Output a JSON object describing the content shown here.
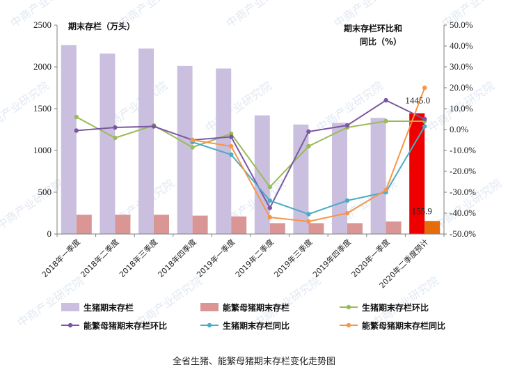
{
  "chart_data": {
    "type": "bar+line",
    "caption": "全省生猪、能繁母猪期末存栏变化走势图",
    "left_axis_title": "期末存栏（万头）",
    "right_axis_title_line1": "期末存栏环比和",
    "right_axis_title_line2": "同比（%）",
    "left_ylim": [
      0,
      2500
    ],
    "left_ticks": [
      "0",
      "500",
      "1000",
      "1500",
      "2000",
      "2500"
    ],
    "right_ylim": [
      -50,
      50
    ],
    "right_ticks": [
      "-50.0%",
      "-40.0%",
      "-30.0%",
      "-20.0%",
      "-10.0%",
      "0.0%",
      "10.0%",
      "20.0%",
      "30.0%",
      "40.0%",
      "50.0%"
    ],
    "categories": [
      "2018年一季度",
      "2018年二季度",
      "2018年三季度",
      "2018年四季度",
      "2019年一季度",
      "2019年二季度",
      "2019年三季度",
      "2019年四季度",
      "2020年一季度",
      "2020年二季度预计"
    ],
    "bar_series": [
      {
        "name": "生猪期末存栏",
        "color": "#cbbfe0",
        "last_color": "#ee0000",
        "values": [
          2260,
          2160,
          2220,
          2010,
          1980,
          1420,
          1310,
          1330,
          1390,
          1445
        ]
      },
      {
        "name": "能繁母猪期末存栏",
        "color": "#d99694",
        "last_color": "#e46c0a",
        "values": [
          230,
          230,
          230,
          220,
          210,
          130,
          130,
          130,
          150,
          155.9
        ]
      }
    ],
    "line_series": [
      {
        "name": "生猪期末存栏环比",
        "color": "#9bbb59",
        "values": [
          6,
          -4,
          2,
          -8.5,
          -2,
          -27.5,
          -8,
          1,
          4,
          4
        ]
      },
      {
        "name": "能繁母猪期末存栏环比",
        "color": "#7b57a3",
        "values": [
          -0.5,
          1,
          1.5,
          -5,
          -3.5,
          -37.5,
          -1,
          2,
          14,
          5
        ]
      },
      {
        "name": "生猪期末存栏同比",
        "color": "#4bacc6",
        "values": [
          null,
          null,
          null,
          -6,
          -12,
          -34,
          -40.5,
          -34,
          -30,
          1.5
        ]
      },
      {
        "name": "能繁母猪期末存栏同比",
        "color": "#f79646",
        "values": [
          null,
          null,
          null,
          -5,
          -8,
          -42,
          -44,
          -40,
          -29,
          20
        ]
      }
    ],
    "data_labels": {
      "pig_last": "1445.0",
      "sow_last": "155.9"
    }
  }
}
